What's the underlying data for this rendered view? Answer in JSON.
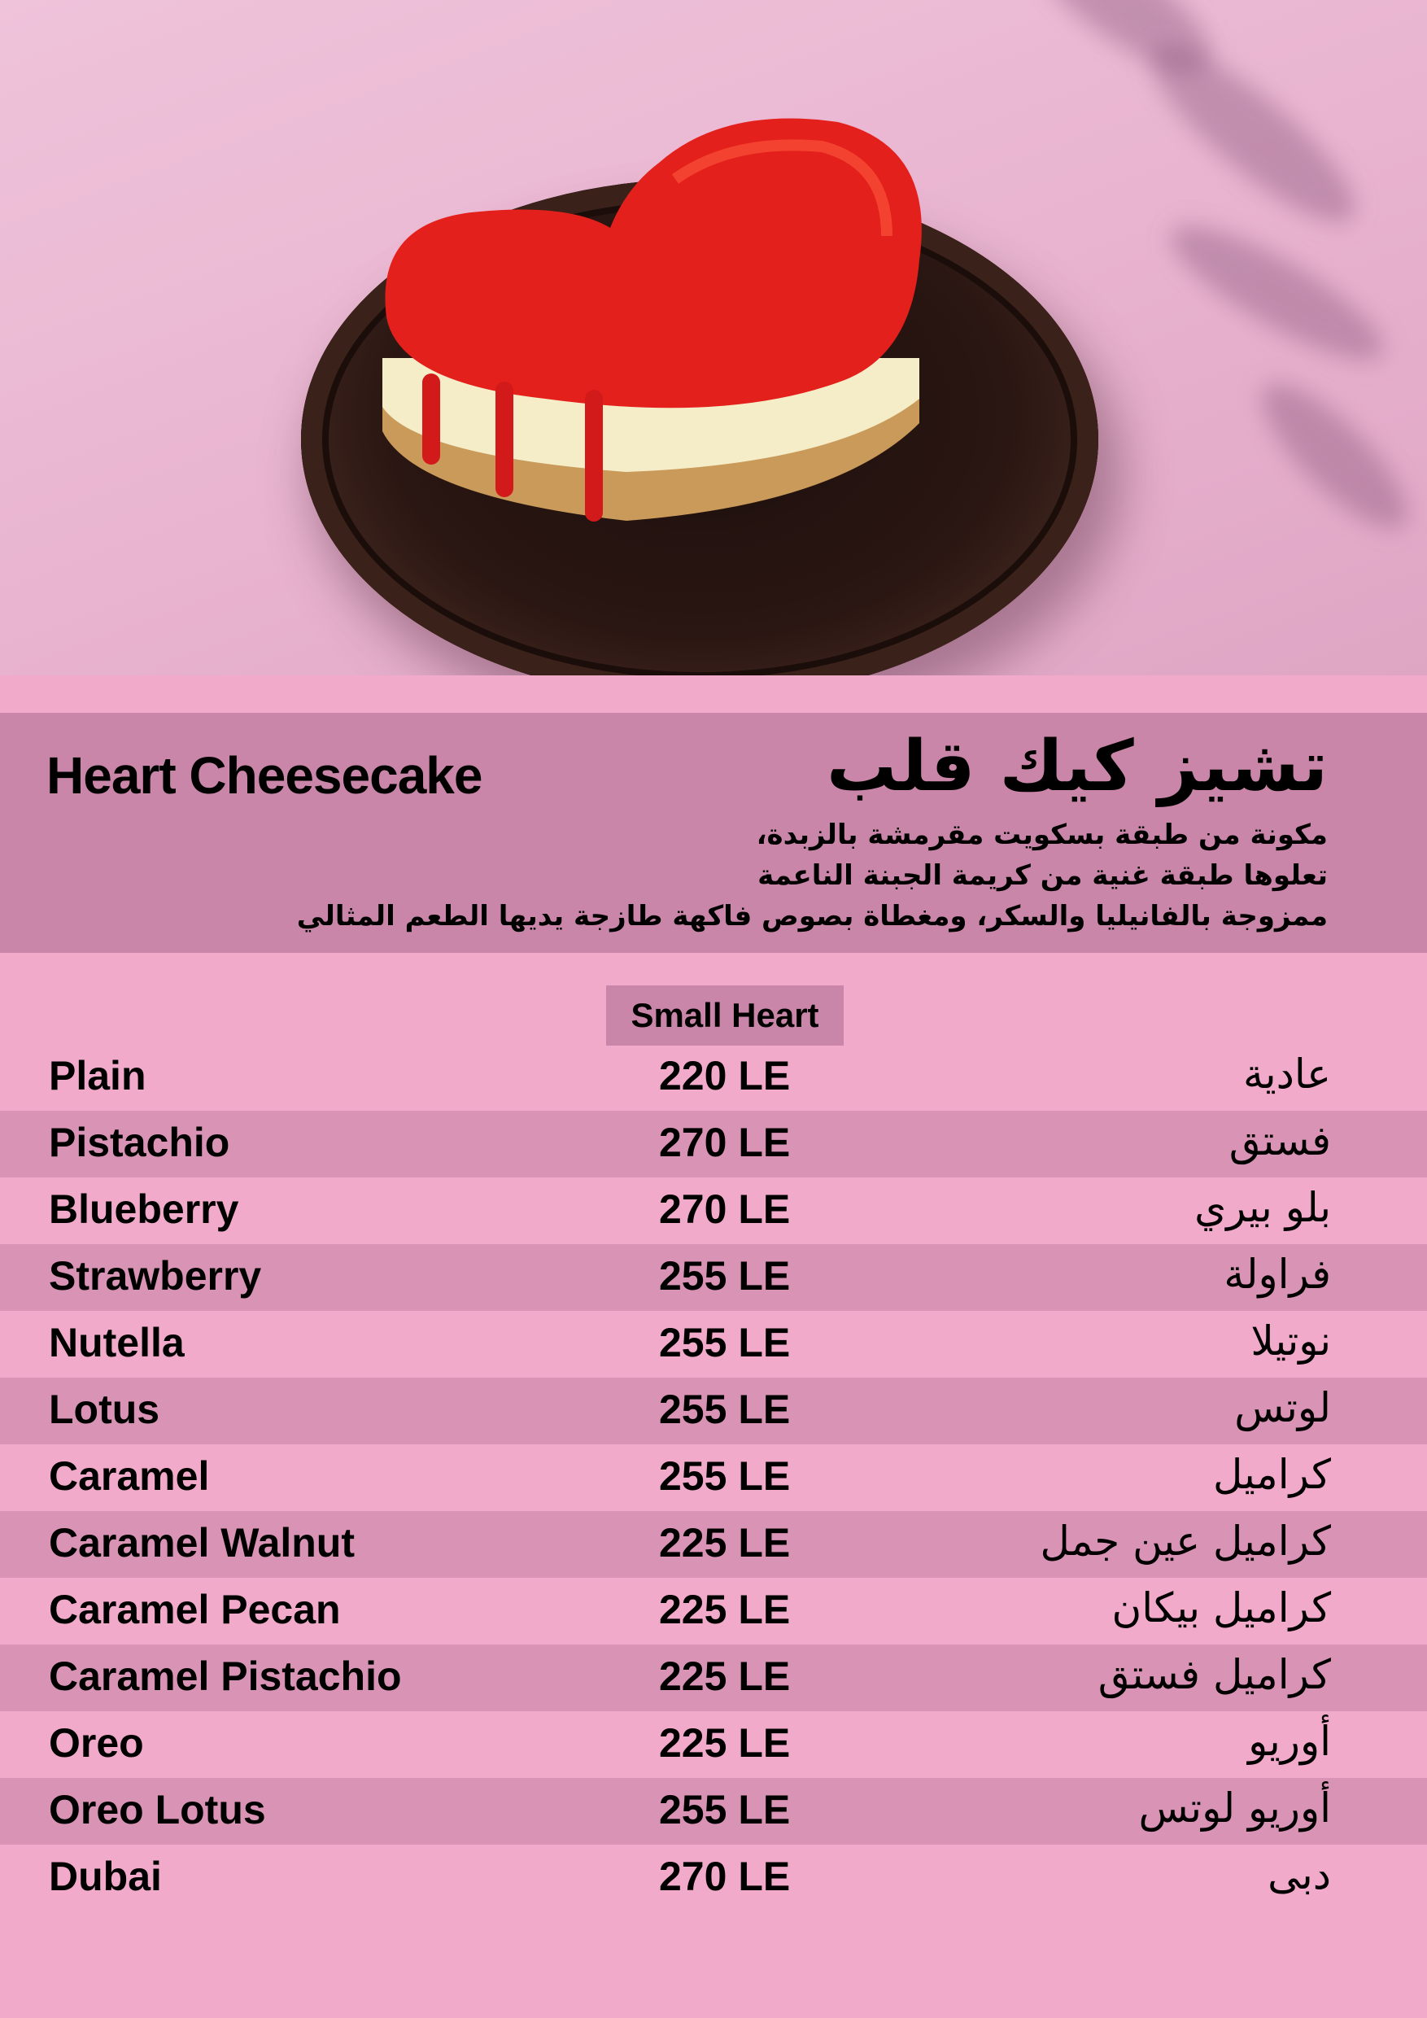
{
  "product": {
    "title_en": "Heart Cheesecake",
    "title_ar": "تشيز كيك قلب",
    "description_ar": [
      "مكونة من طبقة بسكويت مقرمشة بالزبدة،",
      "تعلوها طبقة غنية من كريمة الجبنة الناعمة",
      "ممزوجة بالفانيليا والسكر، ومغطاة بصوص فاكهة طازجة يديها الطعم المثالي"
    ]
  },
  "table": {
    "size_header": "Small Heart",
    "rows": [
      {
        "en": "Plain",
        "price": "220 LE",
        "ar": "عادية"
      },
      {
        "en": "Pistachio",
        "price": "270 LE",
        "ar": "فستق"
      },
      {
        "en": "Blueberry",
        "price": "270 LE",
        "ar": "بلو بيري"
      },
      {
        "en": "Strawberry",
        "price": "255 LE",
        "ar": "فراولة"
      },
      {
        "en": "Nutella",
        "price": "255 LE",
        "ar": "نوتيلا"
      },
      {
        "en": "Lotus",
        "price": "255 LE",
        "ar": "لوتس"
      },
      {
        "en": "Caramel",
        "price": "255 LE",
        "ar": "كراميل"
      },
      {
        "en": "Caramel Walnut",
        "price": "225 LE",
        "ar": "كراميل عين جمل"
      },
      {
        "en": "Caramel Pecan",
        "price": "225 LE",
        "ar": "كراميل بيكان"
      },
      {
        "en": "Caramel Pistachio",
        "price": "225 LE",
        "ar": "كراميل فستق"
      },
      {
        "en": "Oreo",
        "price": "225 LE",
        "ar": "أوريو"
      },
      {
        "en": "Oreo Lotus",
        "price": "255 LE",
        "ar": "أوريو لوتس"
      },
      {
        "en": "Dubai",
        "price": "270 LE",
        "ar": "دبى"
      }
    ]
  },
  "colors": {
    "background": "#f1aac9",
    "header_band": "#c986a8",
    "row_stripe": "#d993b5",
    "text": "#000000"
  }
}
